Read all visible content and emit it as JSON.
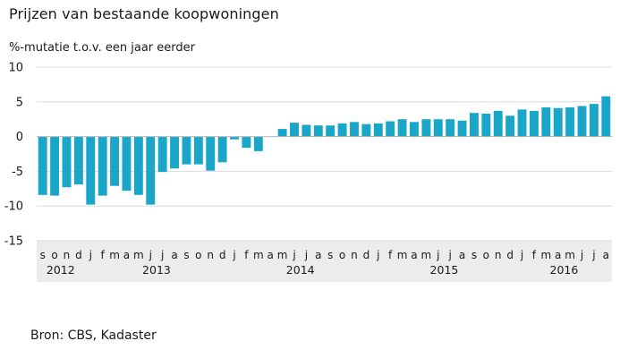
{
  "title": "Prijzen van bestaande koopwoningen",
  "y_unit_label": "%-mutatie t.o.v. een jaar eerder",
  "source": "Bron: CBS, Kadaster",
  "colors": {
    "bar": "#1aa6c9",
    "grid": "#dcdcdc",
    "band": "#ececec",
    "zero": "#b4b4b4"
  },
  "chart_data": {
    "type": "bar",
    "ylim": [
      -15,
      10
    ],
    "yticks": [
      10,
      5,
      0,
      -5,
      -10,
      -15
    ],
    "grid": true,
    "months": [
      "s",
      "o",
      "n",
      "d",
      "j",
      "f",
      "m",
      "a",
      "m",
      "j",
      "j",
      "a",
      "s",
      "o",
      "n",
      "d",
      "j",
      "f",
      "m",
      "a",
      "m",
      "j",
      "j",
      "a",
      "s",
      "o",
      "n",
      "d",
      "j",
      "f",
      "m",
      "a",
      "m",
      "j",
      "j",
      "a",
      "s",
      "o",
      "n",
      "d",
      "j",
      "f",
      "m",
      "a",
      "m",
      "j",
      "j",
      "a"
    ],
    "years": [
      {
        "label": "2012",
        "start": 0,
        "end": 3
      },
      {
        "label": "2013",
        "start": 4,
        "end": 15
      },
      {
        "label": "2014",
        "start": 16,
        "end": 27
      },
      {
        "label": "2015",
        "start": 28,
        "end": 39
      },
      {
        "label": "2016",
        "start": 40,
        "end": 47
      }
    ],
    "values": [
      -8.4,
      -8.5,
      -7.3,
      -6.9,
      -9.8,
      -8.5,
      -7.1,
      -7.8,
      -8.4,
      -9.8,
      -5.1,
      -4.6,
      -4.0,
      -4.0,
      -4.9,
      -3.7,
      -0.4,
      -1.6,
      -2.1,
      null,
      1.1,
      2.0,
      1.7,
      1.6,
      1.6,
      1.9,
      2.1,
      1.8,
      1.9,
      2.2,
      2.5,
      2.1,
      2.5,
      2.5,
      2.5,
      2.3,
      3.4,
      3.3,
      3.7,
      3.0,
      3.9,
      3.7,
      4.2,
      4.1,
      4.2,
      4.4,
      4.7,
      5.8
    ]
  }
}
